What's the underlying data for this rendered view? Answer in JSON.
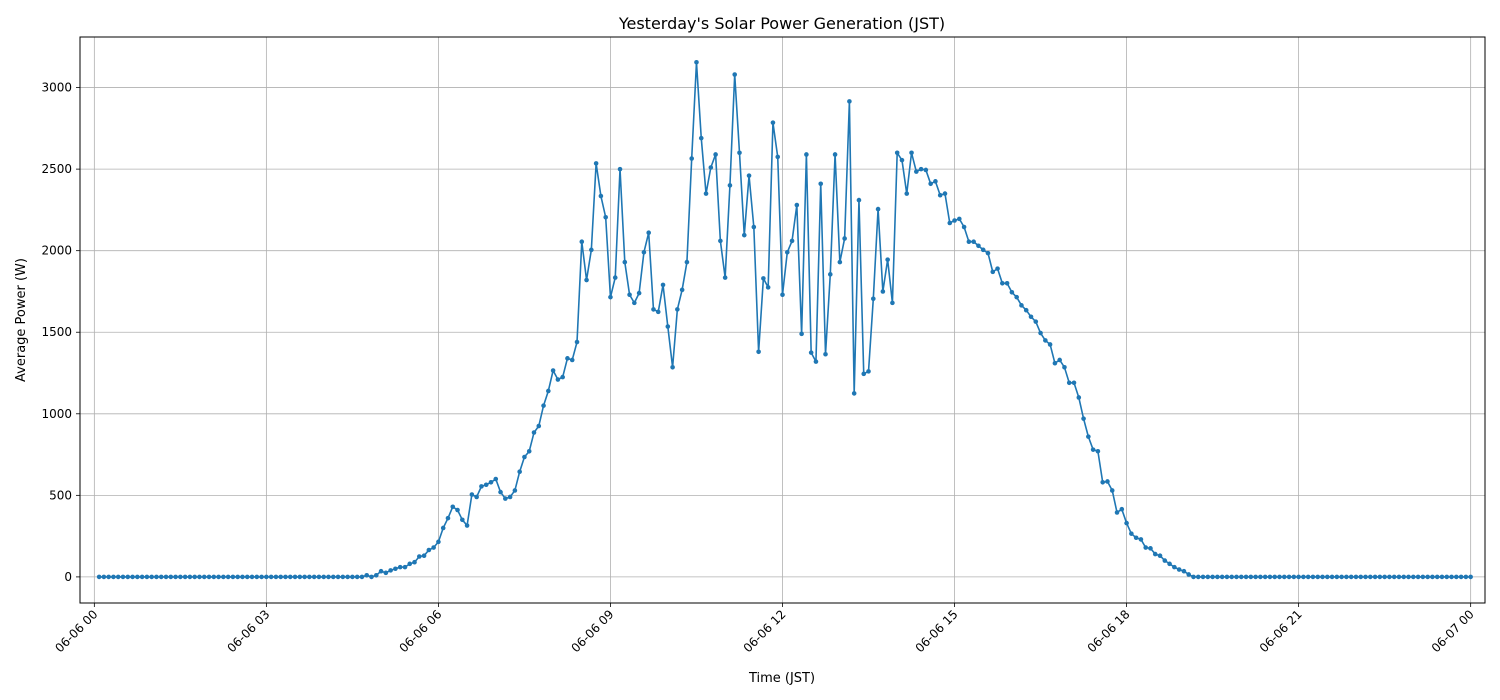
{
  "chart_data": {
    "type": "line",
    "title": "Yesterday's Solar Power Generation (JST)",
    "xlabel": "Time (JST)",
    "ylabel": "Average Power (W)",
    "grid": true,
    "legend": "none",
    "x_unit": "datetime",
    "x_range": [
      "2024-06-05 23:45",
      "2024-06-07 00:15"
    ],
    "ylim": [
      -160,
      3310
    ],
    "x_ticks": [
      {
        "label": "06-06 00",
        "hour": 0
      },
      {
        "label": "06-06 03",
        "hour": 3
      },
      {
        "label": "06-06 06",
        "hour": 6
      },
      {
        "label": "06-06 09",
        "hour": 9
      },
      {
        "label": "06-06 12",
        "hour": 12
      },
      {
        "label": "06-06 15",
        "hour": 15
      },
      {
        "label": "06-06 18",
        "hour": 18
      },
      {
        "label": "06-06 21",
        "hour": 21
      },
      {
        "label": "06-07 00",
        "hour": 24
      }
    ],
    "y_ticks": [
      0,
      500,
      1000,
      1500,
      2000,
      2500,
      3000
    ],
    "series": [
      {
        "color": "#1f77b4",
        "marker": "circle",
        "sample_interval": "5 min",
        "first_timestamp": "06-06 00:05",
        "points": [
          [
            "04:40",
            0
          ],
          [
            "04:45",
            10
          ],
          [
            "04:50",
            0
          ],
          [
            "04:55",
            10
          ],
          [
            "05:00",
            35
          ],
          [
            "05:05",
            25
          ],
          [
            "05:10",
            40
          ],
          [
            "05:15",
            50
          ],
          [
            "05:20",
            60
          ],
          [
            "05:25",
            60
          ],
          [
            "05:30",
            80
          ],
          [
            "05:35",
            90
          ],
          [
            "05:40",
            125
          ],
          [
            "05:45",
            130
          ],
          [
            "05:50",
            165
          ],
          [
            "05:55",
            180
          ],
          [
            "06:00",
            215
          ],
          [
            "06:05",
            300
          ],
          [
            "06:10",
            360
          ],
          [
            "06:15",
            430
          ],
          [
            "06:20",
            410
          ],
          [
            "06:25",
            350
          ],
          [
            "06:30",
            315
          ],
          [
            "06:35",
            505
          ],
          [
            "06:40",
            490
          ],
          [
            "06:45",
            555
          ],
          [
            "06:50",
            565
          ],
          [
            "06:55",
            580
          ],
          [
            "07:00",
            600
          ],
          [
            "07:05",
            520
          ],
          [
            "07:10",
            480
          ],
          [
            "07:15",
            490
          ],
          [
            "07:20",
            530
          ],
          [
            "07:25",
            645
          ],
          [
            "07:30",
            735
          ],
          [
            "07:35",
            770
          ],
          [
            "07:40",
            885
          ],
          [
            "07:45",
            925
          ],
          [
            "07:50",
            1050
          ],
          [
            "07:55",
            1140
          ],
          [
            "08:00",
            1265
          ],
          [
            "08:05",
            1210
          ],
          [
            "08:10",
            1225
          ],
          [
            "08:15",
            1340
          ],
          [
            "08:20",
            1330
          ],
          [
            "08:25",
            1440
          ],
          [
            "08:30",
            2055
          ],
          [
            "08:35",
            1820
          ],
          [
            "08:40",
            2005
          ],
          [
            "08:45",
            2535
          ],
          [
            "08:50",
            2335
          ],
          [
            "08:55",
            2205
          ],
          [
            "09:00",
            1715
          ],
          [
            "09:05",
            1835
          ],
          [
            "09:10",
            2500
          ],
          [
            "09:15",
            1930
          ],
          [
            "09:20",
            1730
          ],
          [
            "09:25",
            1680
          ],
          [
            "09:30",
            1740
          ],
          [
            "09:35",
            1990
          ],
          [
            "09:40",
            2110
          ],
          [
            "09:45",
            1640
          ],
          [
            "09:50",
            1625
          ],
          [
            "09:55",
            1790
          ],
          [
            "10:00",
            1535
          ],
          [
            "10:05",
            1285
          ],
          [
            "10:10",
            1640
          ],
          [
            "10:15",
            1760
          ],
          [
            "10:20",
            1930
          ],
          [
            "10:25",
            2565
          ],
          [
            "10:30",
            3155
          ],
          [
            "10:35",
            2690
          ],
          [
            "10:40",
            2350
          ],
          [
            "10:45",
            2510
          ],
          [
            "10:50",
            2590
          ],
          [
            "10:55",
            2060
          ],
          [
            "11:00",
            1835
          ],
          [
            "11:05",
            2400
          ],
          [
            "11:10",
            3080
          ],
          [
            "11:15",
            2600
          ],
          [
            "11:20",
            2095
          ],
          [
            "11:25",
            2460
          ],
          [
            "11:30",
            2145
          ],
          [
            "11:35",
            1380
          ],
          [
            "11:40",
            1830
          ],
          [
            "11:45",
            1775
          ],
          [
            "11:50",
            2785
          ],
          [
            "11:55",
            2575
          ],
          [
            "12:00",
            1730
          ],
          [
            "12:05",
            1990
          ],
          [
            "12:10",
            2060
          ],
          [
            "12:15",
            2280
          ],
          [
            "12:20",
            1490
          ],
          [
            "12:25",
            2590
          ],
          [
            "12:30",
            1375
          ],
          [
            "12:35",
            1320
          ],
          [
            "12:40",
            2410
          ],
          [
            "12:45",
            1365
          ],
          [
            "12:50",
            1855
          ],
          [
            "12:55",
            2590
          ],
          [
            "13:00",
            1930
          ],
          [
            "13:05",
            2075
          ],
          [
            "13:10",
            2915
          ],
          [
            "13:15",
            1125
          ],
          [
            "13:20",
            2310
          ],
          [
            "13:25",
            1245
          ],
          [
            "13:30",
            1260
          ],
          [
            "13:35",
            1705
          ],
          [
            "13:40",
            2255
          ],
          [
            "13:45",
            1750
          ],
          [
            "13:50",
            1945
          ],
          [
            "13:55",
            1680
          ],
          [
            "14:00",
            2600
          ],
          [
            "14:05",
            2555
          ],
          [
            "14:10",
            2350
          ],
          [
            "14:15",
            2600
          ],
          [
            "14:20",
            2485
          ],
          [
            "14:25",
            2500
          ],
          [
            "14:30",
            2495
          ],
          [
            "14:35",
            2410
          ],
          [
            "14:40",
            2425
          ],
          [
            "14:45",
            2340
          ],
          [
            "14:50",
            2350
          ],
          [
            "14:55",
            2170
          ],
          [
            "15:00",
            2185
          ],
          [
            "15:05",
            2195
          ],
          [
            "15:10",
            2145
          ],
          [
            "15:15",
            2055
          ],
          [
            "15:20",
            2055
          ],
          [
            "15:25",
            2030
          ],
          [
            "15:30",
            2005
          ],
          [
            "15:35",
            1985
          ],
          [
            "15:40",
            1870
          ],
          [
            "15:45",
            1890
          ],
          [
            "15:50",
            1800
          ],
          [
            "15:55",
            1800
          ],
          [
            "16:00",
            1745
          ],
          [
            "16:05",
            1715
          ],
          [
            "16:10",
            1665
          ],
          [
            "16:15",
            1635
          ],
          [
            "16:20",
            1595
          ],
          [
            "16:25",
            1565
          ],
          [
            "16:30",
            1495
          ],
          [
            "16:35",
            1450
          ],
          [
            "16:40",
            1425
          ],
          [
            "16:45",
            1310
          ],
          [
            "16:50",
            1330
          ],
          [
            "16:55",
            1285
          ],
          [
            "17:00",
            1190
          ],
          [
            "17:05",
            1190
          ],
          [
            "17:10",
            1100
          ],
          [
            "17:15",
            970
          ],
          [
            "17:20",
            860
          ],
          [
            "17:25",
            780
          ],
          [
            "17:30",
            770
          ],
          [
            "17:35",
            580
          ],
          [
            "17:40",
            585
          ],
          [
            "17:45",
            530
          ],
          [
            "17:50",
            395
          ],
          [
            "17:55",
            415
          ],
          [
            "18:00",
            330
          ],
          [
            "18:05",
            265
          ],
          [
            "18:10",
            240
          ],
          [
            "18:15",
            230
          ],
          [
            "18:20",
            180
          ],
          [
            "18:25",
            175
          ],
          [
            "18:30",
            140
          ],
          [
            "18:35",
            130
          ],
          [
            "18:40",
            100
          ],
          [
            "18:45",
            80
          ],
          [
            "18:50",
            60
          ],
          [
            "18:55",
            45
          ],
          [
            "19:00",
            35
          ],
          [
            "19:05",
            15
          ],
          [
            "19:10",
            0
          ]
        ],
        "baseline_before": {
          "from": "00:05",
          "to": "04:35",
          "value": 0
        },
        "baseline_after": {
          "from": "19:15",
          "to": "24:00",
          "value": 0
        }
      }
    ]
  }
}
